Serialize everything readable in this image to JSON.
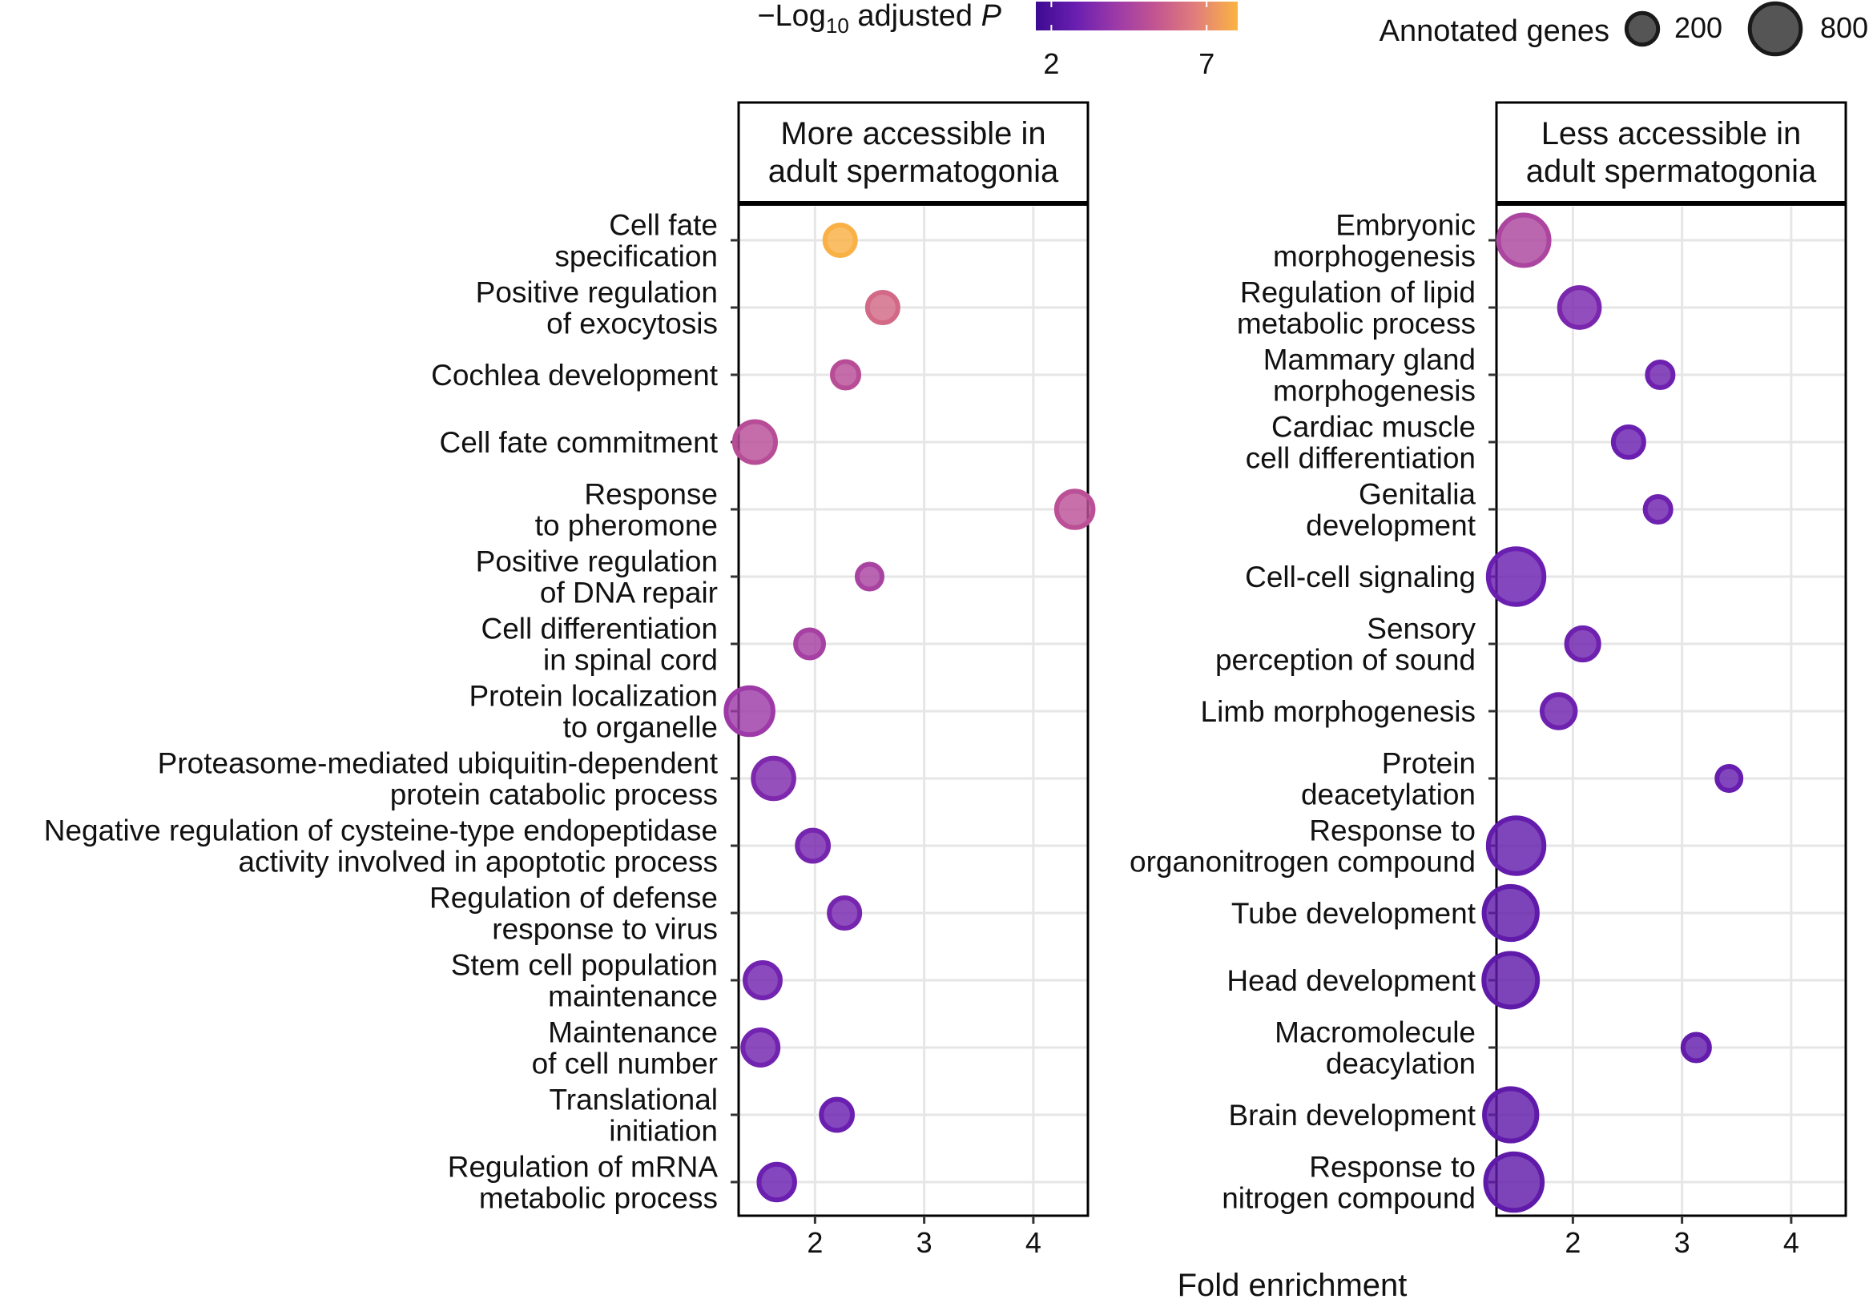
{
  "legend": {
    "color_label_main": "−Log",
    "color_label_sub": "10",
    "color_label_rest": " adjusted ",
    "color_label_italic": "P",
    "color_ticks": [
      "2",
      "7"
    ],
    "color_tick_values": [
      2,
      7
    ],
    "color_range": [
      1.5,
      8.0
    ],
    "size_title": "Annotated genes",
    "size_labels": [
      "200",
      "800"
    ],
    "size_values": [
      200,
      800
    ]
  },
  "x_axis_label": "Fold enrichment",
  "chart_data": [
    {
      "type": "scatter",
      "facet_title": [
        "More accessible in",
        "adult spermatogonia"
      ],
      "xlim": [
        1.3,
        4.5
      ],
      "x_ticks": [
        2,
        3,
        4
      ],
      "x_tick_labels": [
        "2",
        "3",
        "4"
      ],
      "grid": true,
      "points": [
        {
          "term": [
            "Cell fate",
            "specification"
          ],
          "x": 2.23,
          "neg_log10_p": 7.9,
          "genes": 150
        },
        {
          "term": [
            "Positive regulation",
            "of exocytosis"
          ],
          "x": 2.62,
          "neg_log10_p": 6.0,
          "genes": 150
        },
        {
          "term": [
            "Cochlea development"
          ],
          "x": 2.28,
          "neg_log10_p": 5.0,
          "genes": 90
        },
        {
          "term": [
            "Cell fate commitment"
          ],
          "x": 1.45,
          "neg_log10_p": 5.0,
          "genes": 380
        },
        {
          "term": [
            "Response",
            "to pheromone"
          ],
          "x": 4.38,
          "neg_log10_p": 5.1,
          "genes": 270
        },
        {
          "term": [
            "Positive regulation",
            "of DNA repair"
          ],
          "x": 2.5,
          "neg_log10_p": 4.5,
          "genes": 70
        },
        {
          "term": [
            "Cell differentiation",
            "in spinal cord"
          ],
          "x": 1.95,
          "neg_log10_p": 4.4,
          "genes": 110
        },
        {
          "term": [
            "Protein localization",
            "to organelle"
          ],
          "x": 1.4,
          "neg_log10_p": 4.1,
          "genes": 560
        },
        {
          "term": [
            "Proteasome-mediated ubiquitin-dependent",
            "protein catabolic process"
          ],
          "x": 1.62,
          "neg_log10_p": 3.3,
          "genes": 370
        },
        {
          "term": [
            "Negative regulation of cysteine-type endopeptidase",
            "activity involved in apoptotic process"
          ],
          "x": 1.98,
          "neg_log10_p": 3.1,
          "genes": 160
        },
        {
          "term": [
            "Regulation of defense",
            "response to virus"
          ],
          "x": 2.27,
          "neg_log10_p": 3.1,
          "genes": 150
        },
        {
          "term": [
            "Stem cell population",
            "maintenance"
          ],
          "x": 1.52,
          "neg_log10_p": 3.0,
          "genes": 240
        },
        {
          "term": [
            "Maintenance",
            "of cell number"
          ],
          "x": 1.5,
          "neg_log10_p": 3.0,
          "genes": 240
        },
        {
          "term": [
            "Translational",
            "initiation"
          ],
          "x": 2.2,
          "neg_log10_p": 2.8,
          "genes": 160
        },
        {
          "term": [
            "Regulation of mRNA",
            "metabolic process"
          ],
          "x": 1.65,
          "neg_log10_p": 2.8,
          "genes": 250
        }
      ]
    },
    {
      "type": "scatter",
      "facet_title": [
        "Less accessible in",
        "adult spermatogonia"
      ],
      "xlim": [
        1.3,
        4.5
      ],
      "x_ticks": [
        2,
        3,
        4
      ],
      "x_tick_labels": [
        "2",
        "3",
        "4"
      ],
      "grid": true,
      "points": [
        {
          "term": [
            "Embryonic",
            "morphogenesis"
          ],
          "x": 1.55,
          "neg_log10_p": 4.6,
          "genes": 680
        },
        {
          "term": [
            "Regulation of lipid",
            "metabolic process"
          ],
          "x": 2.06,
          "neg_log10_p": 3.2,
          "genes": 350
        },
        {
          "term": [
            "Mammary gland",
            "morphogenesis"
          ],
          "x": 2.8,
          "neg_log10_p": 2.9,
          "genes": 80
        },
        {
          "term": [
            "Cardiac muscle",
            "cell differentiation"
          ],
          "x": 2.51,
          "neg_log10_p": 2.8,
          "genes": 150
        },
        {
          "term": [
            "Genitalia",
            "development"
          ],
          "x": 2.78,
          "neg_log10_p": 2.9,
          "genes": 80
        },
        {
          "term": [
            "Cell-cell signaling"
          ],
          "x": 1.48,
          "neg_log10_p": 2.8,
          "genes": 880
        },
        {
          "term": [
            "Sensory",
            "perception of sound"
          ],
          "x": 2.09,
          "neg_log10_p": 2.9,
          "genes": 180
        },
        {
          "term": [
            "Limb morphogenesis"
          ],
          "x": 1.87,
          "neg_log10_p": 2.9,
          "genes": 200
        },
        {
          "term": [
            "Protein",
            "deacetylation"
          ],
          "x": 3.43,
          "neg_log10_p": 2.7,
          "genes": 60
        },
        {
          "term": [
            "Response to",
            "organonitrogen compound"
          ],
          "x": 1.48,
          "neg_log10_p": 2.6,
          "genes": 880
        },
        {
          "term": [
            "Tube development"
          ],
          "x": 1.43,
          "neg_log10_p": 2.5,
          "genes": 780
        },
        {
          "term": [
            "Head development"
          ],
          "x": 1.43,
          "neg_log10_p": 2.5,
          "genes": 800
        },
        {
          "term": [
            "Macromolecule",
            "deacylation"
          ],
          "x": 3.13,
          "neg_log10_p": 2.6,
          "genes": 90
        },
        {
          "term": [
            "Brain development"
          ],
          "x": 1.43,
          "neg_log10_p": 2.5,
          "genes": 750
        },
        {
          "term": [
            "Response to",
            "nitrogen compound"
          ],
          "x": 1.46,
          "neg_log10_p": 2.5,
          "genes": 920
        }
      ]
    }
  ]
}
